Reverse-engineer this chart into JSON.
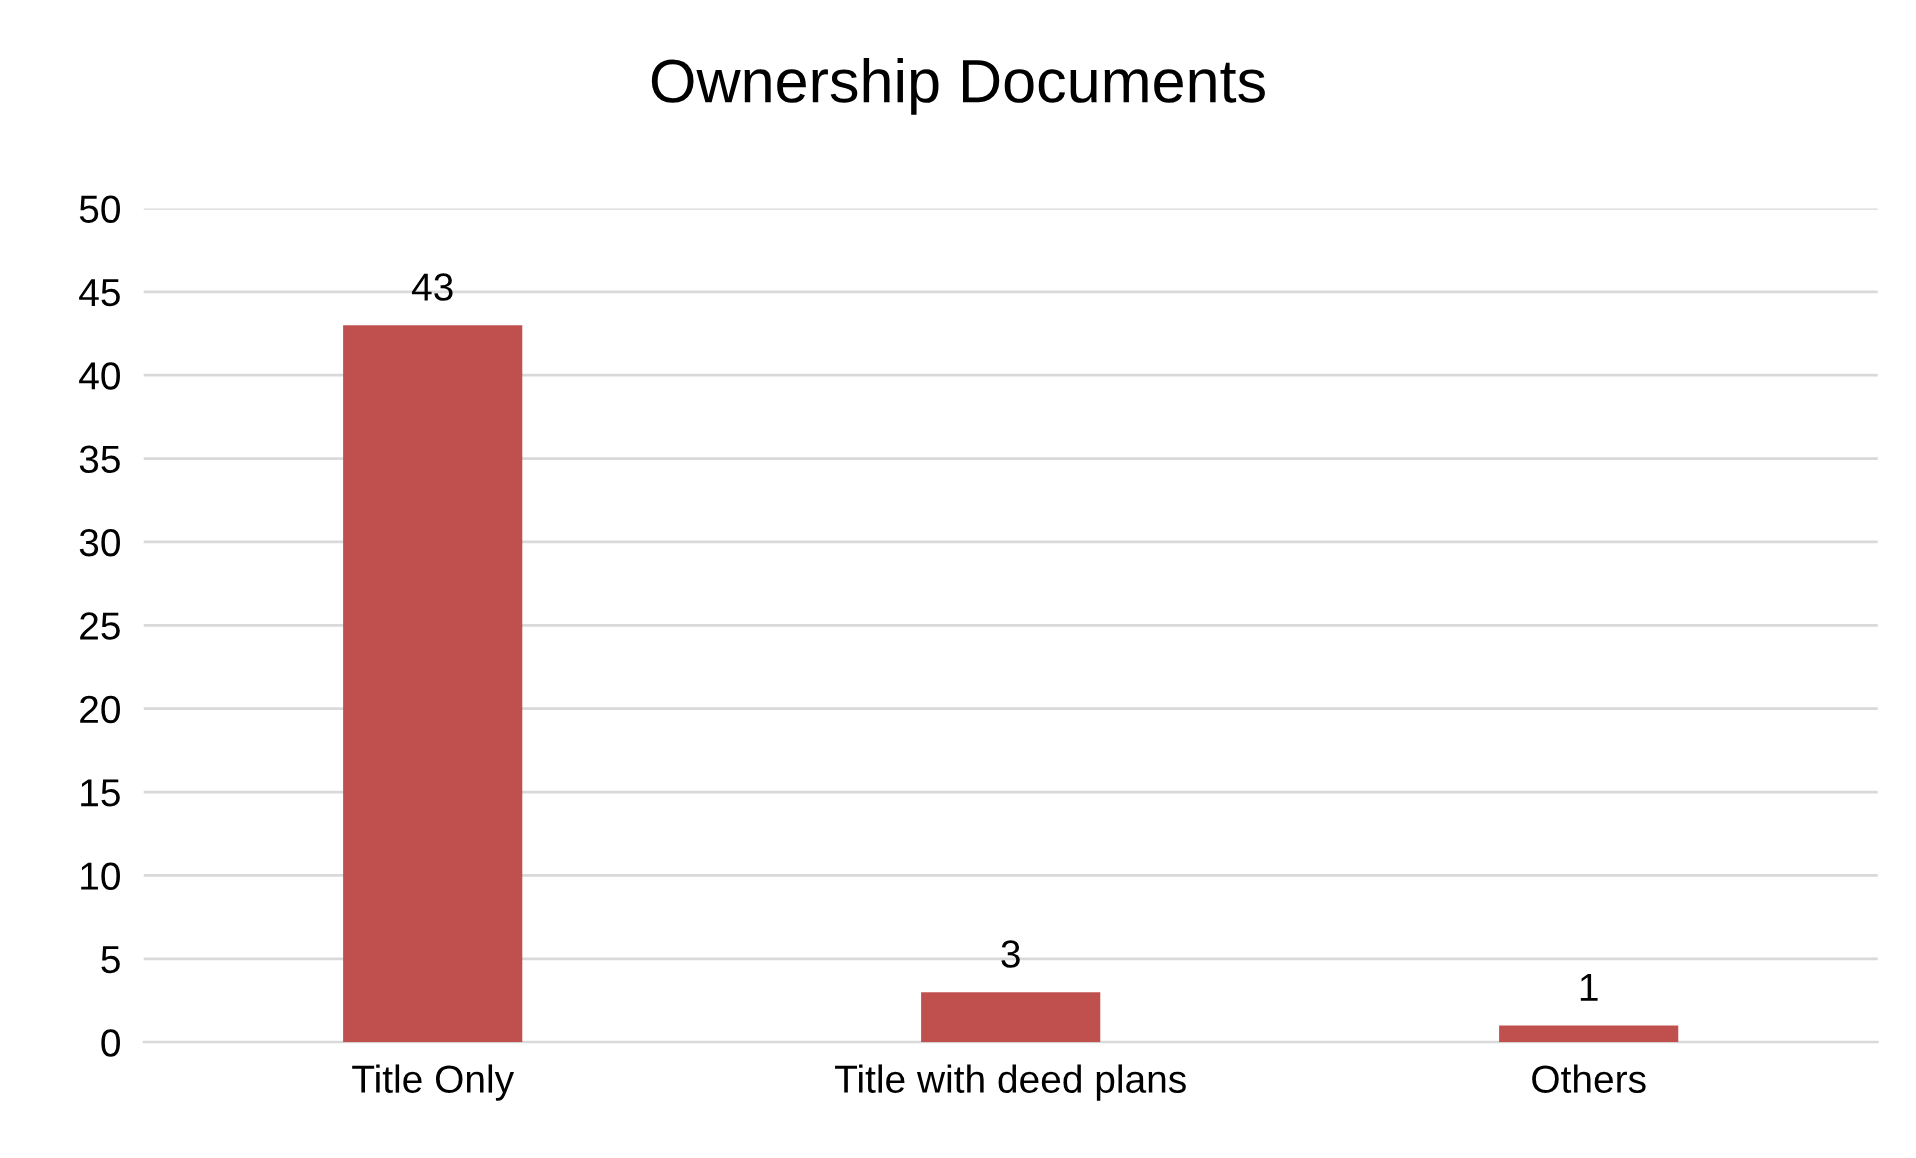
{
  "chart_data": {
    "type": "bar",
    "title": "Ownership Documents",
    "categories": [
      "Title Only",
      "Title with deed plans",
      "Others"
    ],
    "values": [
      43,
      3,
      1
    ],
    "color": "#c0504d",
    "ylim": [
      0,
      50
    ],
    "yticks": [
      0,
      5,
      10,
      15,
      20,
      25,
      30,
      35,
      40,
      45,
      50
    ],
    "grid": "y",
    "data_labels": true,
    "legend": false
  }
}
